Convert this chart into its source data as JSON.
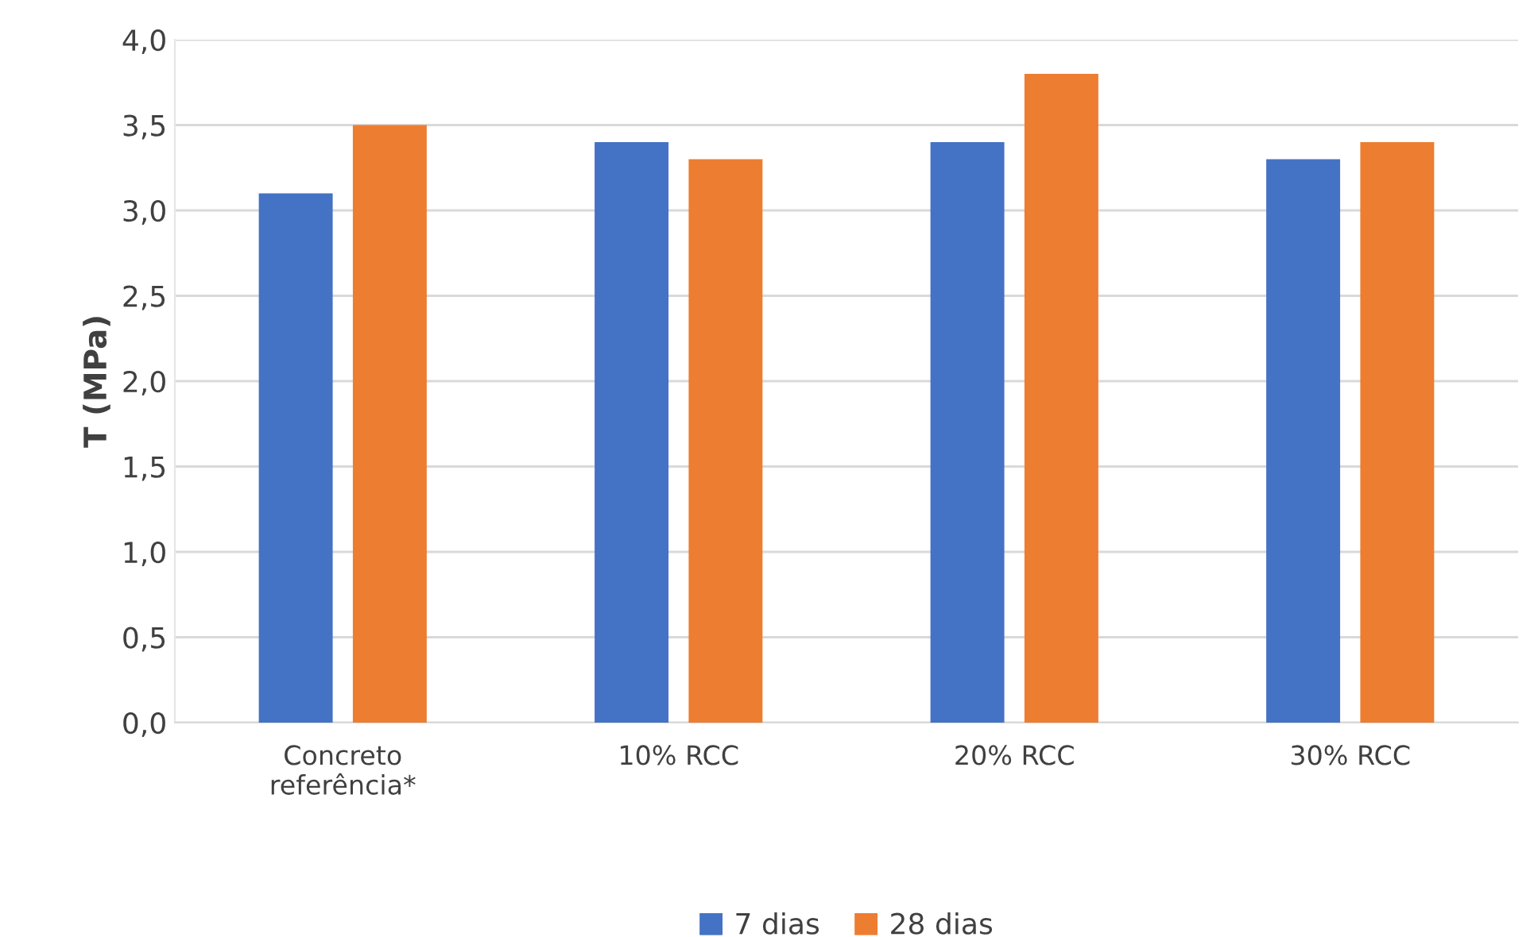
{
  "chart_data": {
    "type": "bar",
    "ylabel": "T (MPa)",
    "categories": [
      "Concreto\nreferência*",
      "10% RCC",
      "20% RCC",
      "30% RCC"
    ],
    "series": [
      {
        "name": "7 dias",
        "color": "#4472c4",
        "values": [
          3.1,
          3.4,
          3.4,
          3.3
        ]
      },
      {
        "name": "28 dias",
        "color": "#ed7d31",
        "values": [
          3.5,
          3.3,
          3.8,
          3.4
        ]
      }
    ],
    "ylim": [
      0,
      4
    ],
    "yticks": [
      {
        "value": 0,
        "label": "0,0"
      },
      {
        "value": 0.5,
        "label": "0,5"
      },
      {
        "value": 1,
        "label": "1,0"
      },
      {
        "value": 1.5,
        "label": "1,5"
      },
      {
        "value": 2,
        "label": "2,0"
      },
      {
        "value": 2.5,
        "label": "2,5"
      },
      {
        "value": 3,
        "label": "3,0"
      },
      {
        "value": 3.5,
        "label": "3,5"
      },
      {
        "value": 4,
        "label": "4,0"
      }
    ],
    "grid": "y",
    "legend": "bottom"
  }
}
